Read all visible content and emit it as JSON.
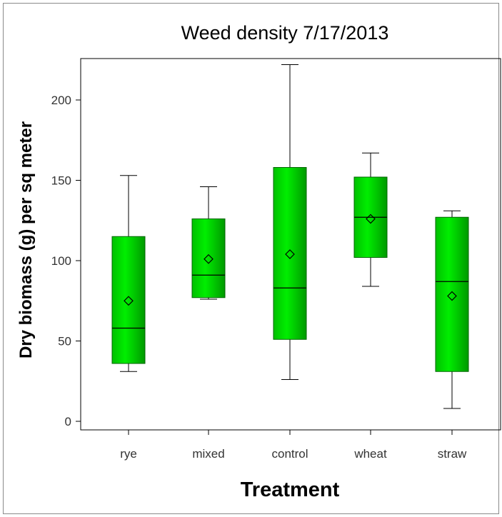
{
  "chart_data": {
    "type": "box",
    "title": "Weed density 7/17/2013",
    "xlabel": "Treatment",
    "ylabel": "Dry biomass (g) per sq meter",
    "ylim": [
      -6,
      224
    ],
    "yticks": [
      0,
      50,
      100,
      150,
      200
    ],
    "categories": [
      "rye",
      "mixed",
      "control",
      "wheat",
      "straw"
    ],
    "boxes": [
      {
        "category": "rye",
        "min": 31,
        "q1": 36,
        "median": 58,
        "q3": 115,
        "max": 153,
        "mean": 75
      },
      {
        "category": "mixed",
        "min": 76,
        "q1": 77,
        "median": 91,
        "q3": 126,
        "max": 146,
        "mean": 101
      },
      {
        "category": "control",
        "min": 26,
        "q1": 51,
        "median": 83,
        "q3": 158,
        "max": 222,
        "mean": 104
      },
      {
        "category": "wheat",
        "min": 84,
        "q1": 102,
        "median": 127,
        "q3": 152,
        "max": 167,
        "mean": 126
      },
      {
        "category": "straw",
        "min": 8,
        "q1": 31,
        "median": 87,
        "q3": 127,
        "max": 131,
        "mean": 78
      }
    ],
    "box_color": "#00dd00",
    "grid": false,
    "legend": "none"
  }
}
